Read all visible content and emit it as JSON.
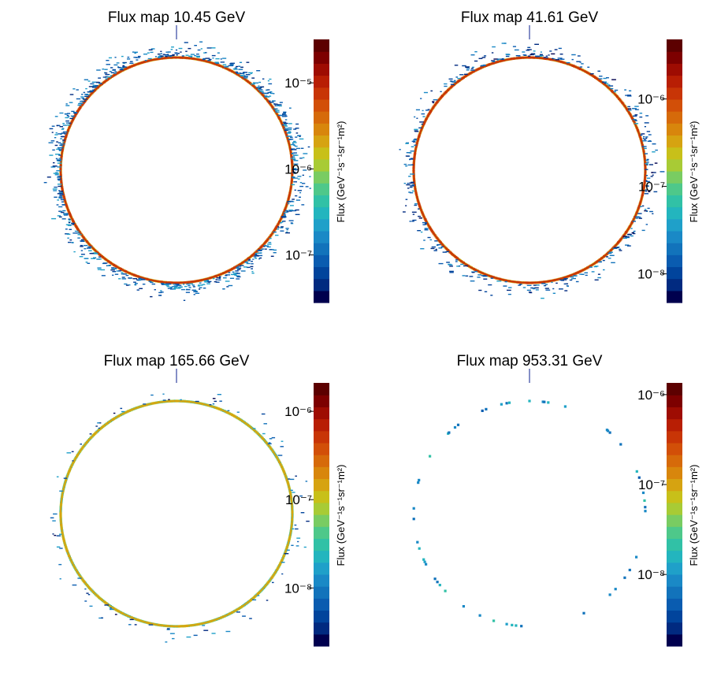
{
  "chart_data": [
    {
      "type": "heatmap",
      "title": "Flux map 10.45 GeV",
      "zlabel": "Flux (GeV⁻¹s⁻¹sr⁻¹m²)",
      "zscale": "log",
      "zlim": [
        2.8e-08,
        3.2e-05
      ],
      "zticks": [
        {
          "value": 1e-07,
          "label": "10⁻⁷"
        },
        {
          "value": 1e-06,
          "label": "10⁻⁶"
        },
        {
          "value": 1e-05,
          "label": "10⁻⁵"
        }
      ],
      "ring_flux": 3e-06,
      "halo_flux": 1.5e-07,
      "halo_density": 0.85
    },
    {
      "type": "heatmap",
      "title": "Flux map 41.61 GeV",
      "zlabel": "Flux (GeV⁻¹s⁻¹sr⁻¹m²)",
      "zscale": "log",
      "zlim": [
        4.7e-09,
        4.8e-06
      ],
      "zticks": [
        {
          "value": 1e-08,
          "label": "10⁻⁸"
        },
        {
          "value": 1e-07,
          "label": "10⁻⁷"
        },
        {
          "value": 1e-06,
          "label": "10⁻⁶"
        }
      ],
      "ring_flux": 5e-07,
      "halo_flux": 2e-08,
      "halo_density": 0.45
    },
    {
      "type": "heatmap",
      "title": "Flux map 165.66 GeV",
      "zlabel": "Flux (GeV⁻¹s⁻¹sr⁻¹m²)",
      "zscale": "log",
      "zlim": [
        2.2e-09,
        2.1e-06
      ],
      "zticks": [
        {
          "value": 1e-08,
          "label": "10⁻⁸"
        },
        {
          "value": 1e-07,
          "label": "10⁻⁷"
        },
        {
          "value": 1e-06,
          "label": "10⁻⁶"
        }
      ],
      "ring_flux": 6e-08,
      "halo_flux": 1e-08,
      "halo_density": 0.12
    },
    {
      "type": "heatmap",
      "title": "Flux map 953.31 GeV",
      "zlabel": "Flux (GeV⁻¹s⁻¹sr⁻¹m²)",
      "zscale": "log",
      "zlim": [
        1.6e-09,
        1.35e-06
      ],
      "zticks": [
        {
          "value": 1e-08,
          "label": "10⁻⁸"
        },
        {
          "value": 1e-07,
          "label": "10⁻⁷"
        },
        {
          "value": 1e-06,
          "label": "10⁻⁶"
        }
      ],
      "ring_flux": 1e-08,
      "halo_flux": 0,
      "halo_density": 0,
      "ring_density": 0.08
    }
  ],
  "palette": [
    "#00004e",
    "#012a80",
    "#01449c",
    "#0a5cb0",
    "#1273bb",
    "#1a89c6",
    "#1fa0c9",
    "#23b5be",
    "#31c1a6",
    "#4ec88a",
    "#79cc62",
    "#a8cb35",
    "#c8c019",
    "#d6a311",
    "#d8860c",
    "#d66a0a",
    "#d24f08",
    "#c83506",
    "#b81e04",
    "#9e0c02",
    "#7d0000",
    "#5c0000"
  ]
}
